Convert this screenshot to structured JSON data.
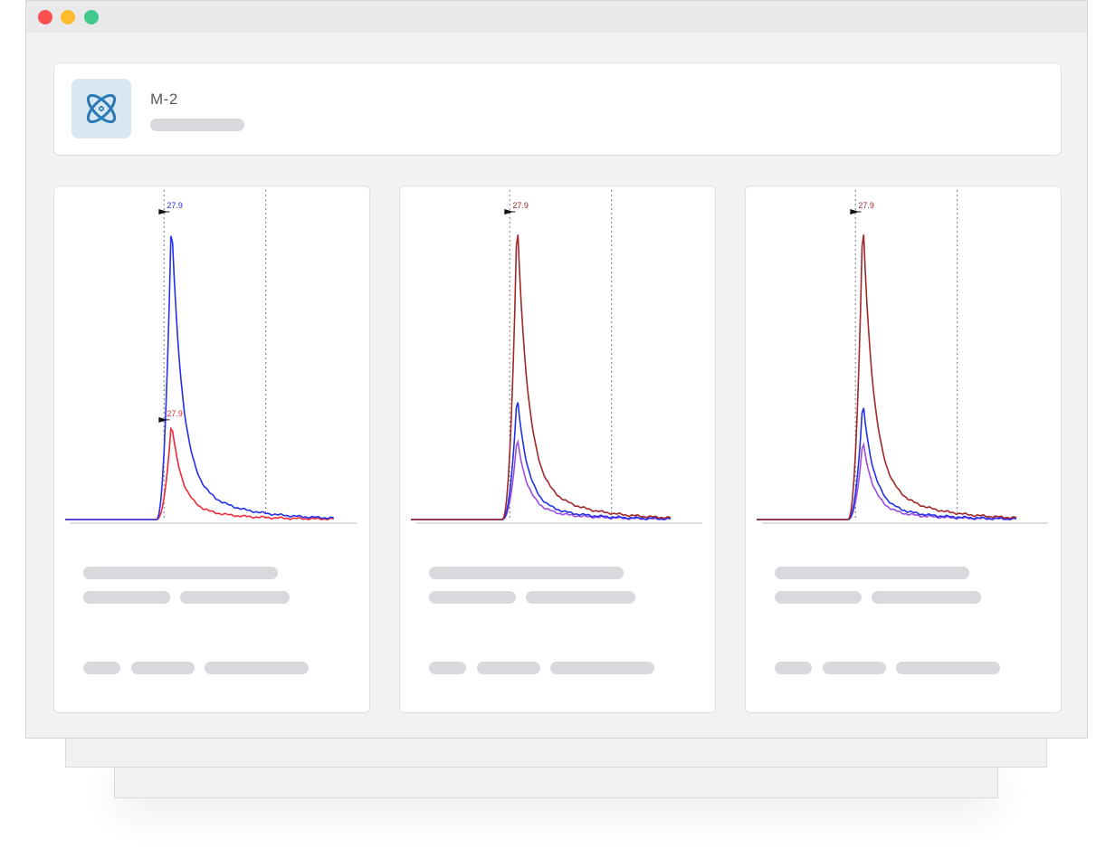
{
  "header": {
    "title": "M-2",
    "icon": "atom-icon"
  },
  "colors": {
    "blue": "#2230e8",
    "red": "#f0283a",
    "maroon": "#a0282a",
    "purple": "#9a4de0",
    "icon_bg": "#d8e7f1",
    "icon_stroke": "#2a7ab8"
  },
  "cards": [
    {
      "chart_data": {
        "type": "line",
        "peak_label": "27.9",
        "series": [
          {
            "color": "blue",
            "label": "27.9",
            "peak": 1.0
          },
          {
            "color": "red",
            "label": "27.9",
            "peak": 0.32
          }
        ]
      }
    },
    {
      "chart_data": {
        "type": "line",
        "peak_label": "27.9",
        "series": [
          {
            "color": "maroon",
            "label": "27.9",
            "peak": 1.0
          },
          {
            "color": "blue",
            "peak": 0.41
          },
          {
            "color": "purple",
            "peak": 0.27
          }
        ]
      }
    },
    {
      "chart_data": {
        "type": "line",
        "peak_label": "27.9",
        "series": [
          {
            "color": "maroon",
            "label": "27.9",
            "peak": 1.0
          },
          {
            "color": "blue",
            "peak": 0.39
          },
          {
            "color": "purple",
            "peak": 0.26
          }
        ]
      }
    }
  ]
}
